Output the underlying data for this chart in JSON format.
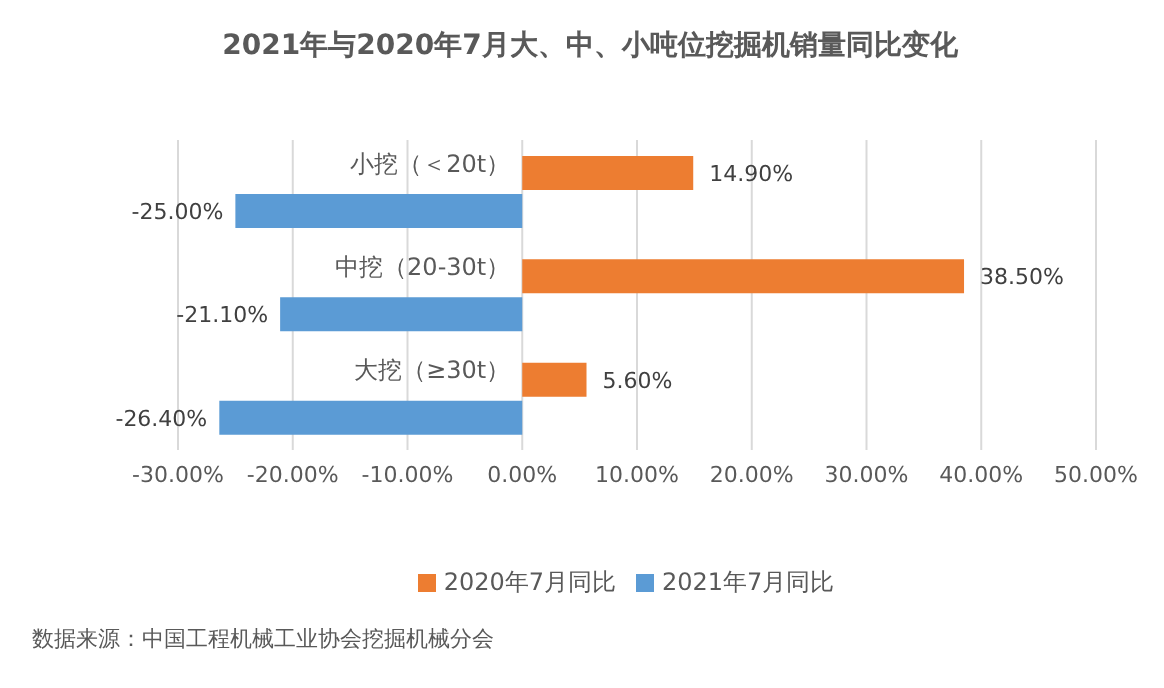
{
  "chart_data": {
    "type": "bar",
    "orientation": "horizontal",
    "title": "2021年与2020年7月大、中、小吨位挖掘机销量同比变化",
    "categories": [
      "小挖（＜20t）",
      "中挖（20-30t）",
      "大挖（≥30t）"
    ],
    "series": [
      {
        "name": "2020年7月同比",
        "color": "#ed7d31",
        "values": [
          14.9,
          38.5,
          5.6
        ],
        "value_labels": [
          "14.90%",
          "38.50%",
          "5.60%"
        ]
      },
      {
        "name": "2021年7月同比",
        "color": "#5b9bd5",
        "values": [
          -25.0,
          -21.1,
          -26.4
        ],
        "value_labels": [
          "-25.00%",
          "-21.10%",
          "-26.40%"
        ]
      }
    ],
    "xlim": [
      -30,
      50
    ],
    "xticks": [
      {
        "value": -30,
        "label": "-30.00%"
      },
      {
        "value": -20,
        "label": "-20.00%"
      },
      {
        "value": -10,
        "label": "-10.00%"
      },
      {
        "value": 0,
        "label": "0.00%"
      },
      {
        "value": 10,
        "label": "10.00%"
      },
      {
        "value": 20,
        "label": "20.00%"
      },
      {
        "value": 30,
        "label": "30.00%"
      },
      {
        "value": 40,
        "label": "40.00%"
      },
      {
        "value": 50,
        "label": "50.00%"
      }
    ],
    "grid": "x",
    "legend": "bottom",
    "annotations": [
      "数据来源：中国工程机械工业协会挖掘机械分会"
    ]
  }
}
